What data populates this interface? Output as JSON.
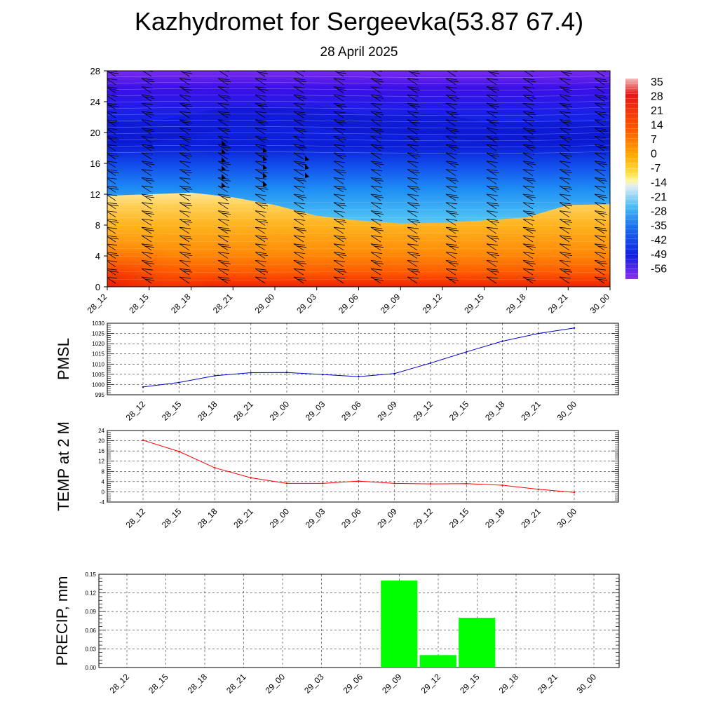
{
  "header": {
    "title": "Kazhydromet for Sergeevka(53.87 67.4)",
    "date": "28 April 2025"
  },
  "time_labels": [
    "28_12",
    "28_15",
    "28_18",
    "28_21",
    "29_00",
    "29_03",
    "29_06",
    "29_09",
    "29_12",
    "29_15",
    "29_18",
    "29_21",
    "30_00"
  ],
  "colors": {
    "pmsl_line": "#0000cc",
    "temp_line": "#ff0000",
    "precip_bar": "#00ff00",
    "grid": "#000000"
  },
  "chart_data": [
    {
      "type": "heatmap",
      "title": "",
      "x_categories": [
        "28_12",
        "28_15",
        "28_18",
        "28_21",
        "29_00",
        "29_03",
        "29_06",
        "29_09",
        "29_12",
        "29_15",
        "29_18",
        "29_21",
        "30_00"
      ],
      "y_ticks": [
        0,
        4,
        8,
        12,
        16,
        20,
        24,
        28
      ],
      "ylim": [
        0,
        28
      ],
      "colorbar_labels": [
        "35",
        "28",
        "21",
        "14",
        "7",
        "0",
        "-7",
        "-14",
        "-21",
        "-28",
        "-35",
        "-42",
        "-49",
        "-56"
      ],
      "zero_isotherm_height": [
        11.8,
        12.0,
        12.2,
        11.6,
        10.6,
        9.2,
        8.6,
        8.2,
        8.3,
        8.6,
        9.0,
        10.6,
        10.7
      ],
      "cold_core_height": [
        20,
        20,
        21,
        22,
        22,
        22,
        21,
        21,
        21,
        20,
        20,
        20,
        20
      ],
      "wind_barbs": "west-southwesterly flags at all levels",
      "grid": false
    },
    {
      "type": "line",
      "ylabel": "PMSL",
      "x": [
        "28_12",
        "28_15",
        "28_18",
        "28_21",
        "29_00",
        "29_03",
        "29_06",
        "29_09",
        "29_12",
        "29_15",
        "29_18",
        "29_21",
        "30_00"
      ],
      "y_ticks": [
        995,
        1000,
        1005,
        1010,
        1015,
        1020,
        1025,
        1030
      ],
      "ylim": [
        995,
        1030
      ],
      "series": [
        {
          "values": [
            998.8,
            1001.0,
            1004.3,
            1005.8,
            1005.9,
            1004.9,
            1003.9,
            1005.4,
            1010.5,
            1016.0,
            1021.2,
            1025.0,
            1027.7
          ]
        }
      ],
      "grid": true
    },
    {
      "type": "line",
      "ylabel": "TEMP at 2 M",
      "x": [
        "28_12",
        "28_15",
        "28_18",
        "28_21",
        "29_00",
        "29_03",
        "29_06",
        "29_09",
        "29_12",
        "29_15",
        "29_18",
        "29_21",
        "30_00"
      ],
      "y_ticks": [
        -4,
        0,
        4,
        8,
        12,
        16,
        20,
        24
      ],
      "ylim": [
        -4,
        24
      ],
      "series": [
        {
          "values": [
            20.2,
            15.8,
            9.4,
            5.5,
            3.3,
            3.3,
            4.2,
            3.3,
            3.1,
            3.2,
            2.6,
            1.0,
            -0.2
          ]
        }
      ],
      "grid": true
    },
    {
      "type": "bar",
      "ylabel": "PRECIP, mm",
      "x": [
        "28_12",
        "28_15",
        "28_18",
        "28_21",
        "29_00",
        "29_03",
        "29_06",
        "29_09",
        "29_12",
        "29_15",
        "29_18",
        "29_21",
        "30_00"
      ],
      "y_ticks": [
        "0.00",
        "0.03",
        "0.06",
        "0.09",
        "0.12",
        "0.15"
      ],
      "ylim": [
        0,
        0.15
      ],
      "values": [
        0,
        0,
        0,
        0,
        0,
        0,
        0,
        0.14,
        0.02,
        0.08,
        0,
        0,
        0
      ],
      "grid": true
    }
  ]
}
